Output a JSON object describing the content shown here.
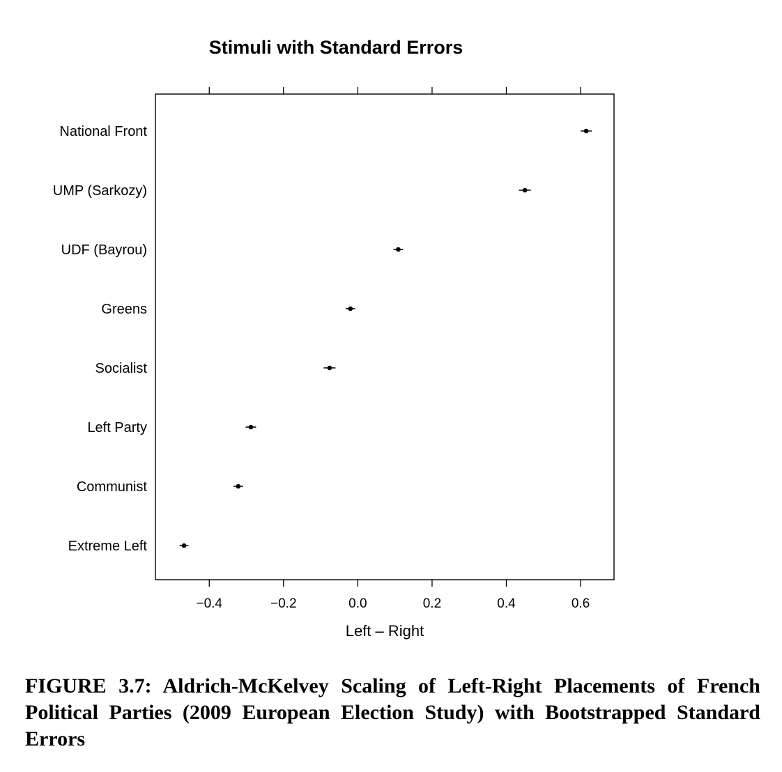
{
  "chart_data": {
    "type": "scatter",
    "title": "Stimuli with Standard Errors",
    "xlabel": "Left – Right",
    "ylabel": "",
    "xlim": [
      -0.545,
      0.69
    ],
    "x_ticks": [
      -0.4,
      -0.2,
      0.0,
      0.2,
      0.4,
      0.6
    ],
    "x_tick_labels": [
      "−0.4",
      "−0.2",
      "0.0",
      "0.2",
      "0.4",
      "0.6"
    ],
    "grid": false,
    "categories": [
      "National Front",
      "UMP (Sarkozy)",
      "UDF (Bayrou)",
      "Greens",
      "Socialist",
      "Left Party",
      "Communist",
      "Extreme Left"
    ],
    "values": [
      0.615,
      0.45,
      0.109,
      -0.02,
      -0.076,
      -0.288,
      -0.322,
      -0.468
    ],
    "std_errors": [
      0.015,
      0.016,
      0.013,
      0.013,
      0.016,
      0.014,
      0.013,
      0.012
    ]
  },
  "caption": "FIGURE 3.7: Aldrich-McKelvey Scaling of Left-Right Placements of French Political Parties (2009 European Election Study) with Bootstrapped Standard Errors"
}
